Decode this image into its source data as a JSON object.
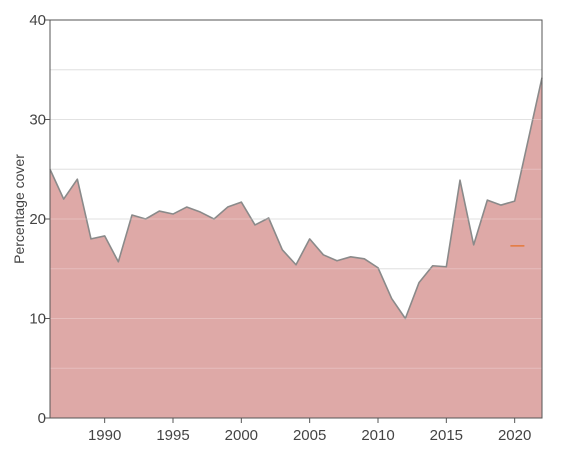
{
  "chart_data": {
    "type": "area",
    "title": "",
    "xlabel": "",
    "ylabel": "Percentage cover",
    "xlim": [
      1986,
      2022
    ],
    "ylim": [
      0,
      40
    ],
    "xticks": [
      1990,
      1995,
      2000,
      2005,
      2010,
      2015,
      2020
    ],
    "yticks": [
      0,
      10,
      20,
      30,
      40
    ],
    "grid": true,
    "colors": {
      "fill": "#dea9a7",
      "line": "#8a8a8a",
      "grid": "#d9d9d9",
      "axis": "#555555",
      "marker": "#e5793b"
    },
    "series": [
      {
        "x": [
          1986,
          1987,
          1988,
          1989,
          1990,
          1991,
          1992,
          1993,
          1994,
          1995,
          1996,
          1997,
          1998,
          1999,
          2000,
          2001,
          2002,
          2003,
          2004,
          2005,
          2006,
          2007,
          2008,
          2009,
          2010,
          2011,
          2012,
          2013,
          2014,
          2015,
          2016,
          2017,
          2018,
          2019,
          2020,
          2021,
          2022
        ],
        "values": [
          25,
          22,
          24,
          18,
          18.3,
          15.7,
          20.4,
          20,
          20.8,
          20.5,
          21.2,
          20.7,
          20,
          21.2,
          21.7,
          19.4,
          20.1,
          16.9,
          15.4,
          18,
          16.4,
          15.8,
          16.2,
          16,
          15.1,
          12,
          10,
          13.6,
          15.3,
          15.2,
          23.9,
          17.4,
          21.9,
          21.4,
          21.8,
          28,
          34.2
        ]
      }
    ],
    "markers": [
      {
        "x": 2020.2,
        "y": 17.3,
        "shape": "dash"
      }
    ]
  }
}
